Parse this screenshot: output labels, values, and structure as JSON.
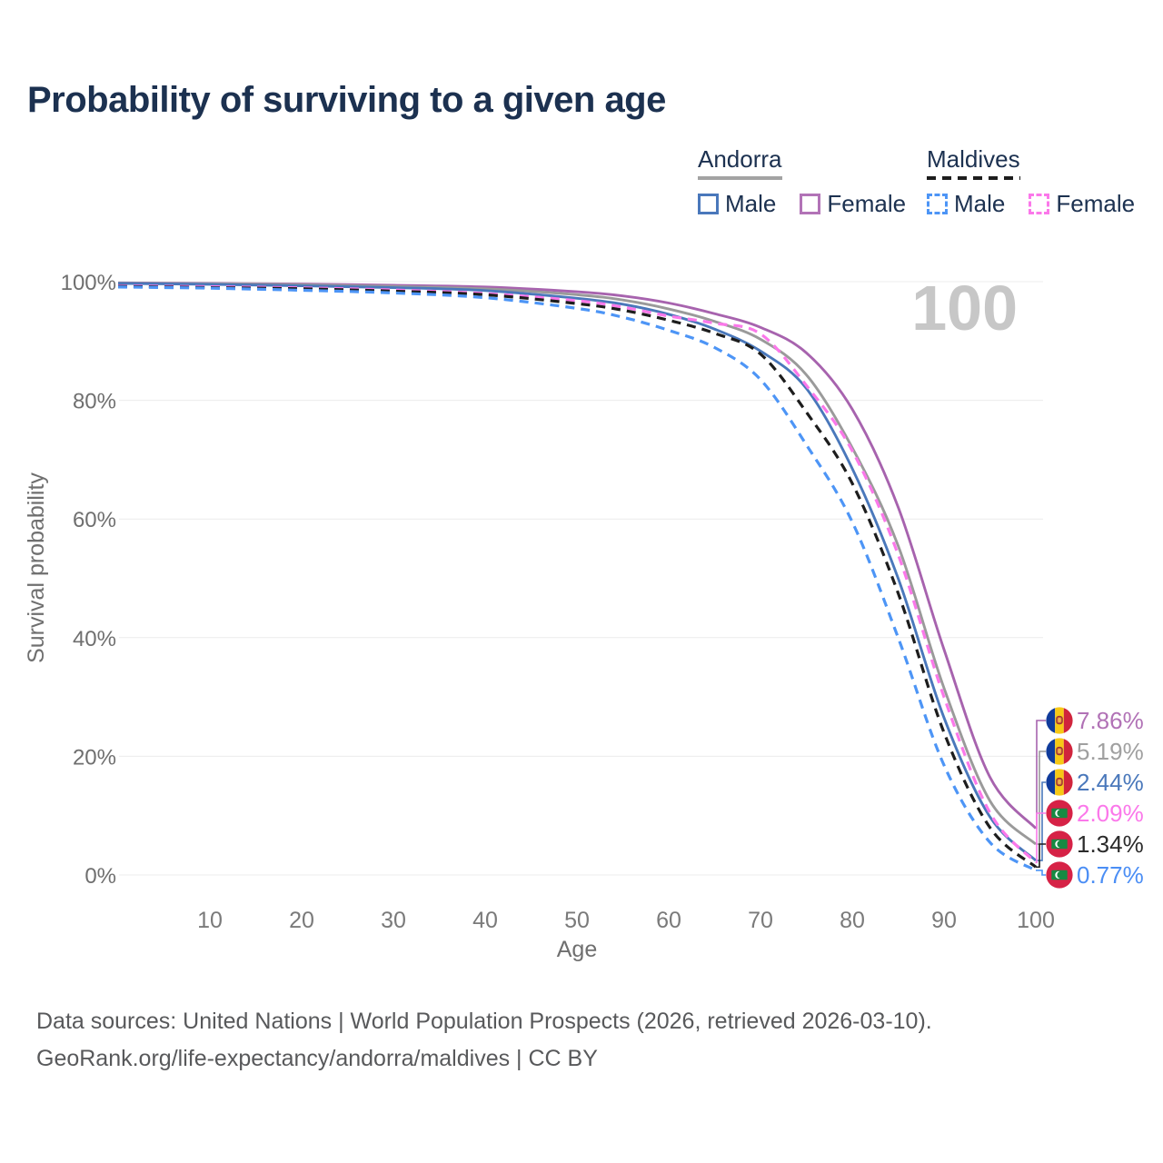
{
  "title": "Probability of surviving to a given age",
  "watermark_age": "100",
  "legend": {
    "groups": [
      {
        "label": "Andorra",
        "line_style": "solid",
        "line_color": "#a3a3a3",
        "items": [
          {
            "label": "Male",
            "color": "#4a78bb",
            "style": "solid"
          },
          {
            "label": "Female",
            "color": "#b273b7",
            "style": "solid"
          }
        ]
      },
      {
        "label": "Maldives",
        "line_style": "dashed",
        "line_color": "#1d1d1d",
        "items": [
          {
            "label": "Male",
            "color": "#4d95f6",
            "style": "dashed"
          },
          {
            "label": "Female",
            "color": "#fb78ea",
            "style": "dashed"
          }
        ]
      }
    ]
  },
  "chart_data": {
    "type": "line",
    "title": "Probability of surviving to a given age",
    "xlabel": "Age",
    "ylabel": "Survival probability",
    "xlim": [
      0,
      100
    ],
    "ylim": [
      0,
      100
    ],
    "x_ticks": [
      10,
      20,
      30,
      40,
      50,
      60,
      70,
      80,
      90,
      100
    ],
    "y_ticks": [
      0,
      20,
      40,
      60,
      80,
      100
    ],
    "y_tick_suffix": "%",
    "grid": "horizontal",
    "legend_position": "top-right",
    "x": [
      0,
      10,
      20,
      30,
      40,
      50,
      55,
      60,
      65,
      70,
      75,
      80,
      85,
      90,
      95,
      100
    ],
    "series": [
      {
        "name": "Andorra Female",
        "country": "Andorra",
        "sex": "Female",
        "color": "#a763ae",
        "label_color": "#b172b6",
        "dash": "solid",
        "flag": "andorra",
        "end_label": "7.86%",
        "values": [
          99.8,
          99.7,
          99.6,
          99.4,
          99.1,
          98.3,
          97.6,
          96.4,
          94.6,
          92.3,
          88.0,
          78.5,
          62.0,
          38.0,
          16.5,
          7.86
        ]
      },
      {
        "name": "Andorra",
        "country": "Andorra",
        "sex": "Both",
        "color": "#9a9a9a",
        "label_color": "#a0a0a0",
        "dash": "solid",
        "flag": "andorra",
        "end_label": "5.19%",
        "values": [
          99.75,
          99.65,
          99.5,
          99.2,
          98.8,
          97.8,
          96.9,
          95.4,
          93.3,
          90.3,
          84.3,
          72.0,
          55.5,
          31.5,
          12.5,
          5.19
        ]
      },
      {
        "name": "Andorra Male",
        "country": "Andorra",
        "sex": "Male",
        "color": "#4a78bb",
        "label_color": "#4a78bb",
        "dash": "solid",
        "flag": "andorra",
        "end_label": "2.44%",
        "values": [
          99.7,
          99.55,
          99.3,
          99.0,
          98.5,
          97.2,
          96.2,
          94.5,
          92.0,
          88.3,
          82.0,
          68.5,
          50.0,
          26.5,
          9.8,
          2.44
        ]
      },
      {
        "name": "Maldives Female",
        "country": "Maldives",
        "sex": "Female",
        "color": "#fb78ea",
        "label_color": "#fb78ea",
        "dash": "dashed",
        "flag": "maldives",
        "end_label": "2.09%",
        "values": [
          99.3,
          99.15,
          98.95,
          98.6,
          98.0,
          96.8,
          95.7,
          94.2,
          93.0,
          91.2,
          82.5,
          71.5,
          54.0,
          30.0,
          10.5,
          2.09
        ]
      },
      {
        "name": "Maldives",
        "country": "Maldives",
        "sex": "Both",
        "color": "#1d1d1d",
        "label_color": "#2b2b2b",
        "dash": "dashed",
        "flag": "maldives",
        "end_label": "1.34%",
        "values": [
          99.2,
          99.0,
          98.8,
          98.4,
          97.8,
          96.3,
          95.2,
          93.5,
          91.3,
          87.8,
          78.0,
          66.0,
          47.5,
          24.0,
          8.0,
          1.34
        ]
      },
      {
        "name": "Maldives Male",
        "country": "Maldives",
        "sex": "Male",
        "color": "#4d95f6",
        "label_color": "#4b8ef5",
        "dash": "dashed",
        "flag": "maldives",
        "end_label": "0.77%",
        "values": [
          99.1,
          98.9,
          98.55,
          98.1,
          97.3,
          95.5,
          94.0,
          91.8,
          88.9,
          83.5,
          72.5,
          59.5,
          40.0,
          18.5,
          5.5,
          0.77
        ]
      }
    ]
  },
  "footer": {
    "line1": "Data sources: United Nations | World Population Prospects (2026, retrieved 2026-03-10).",
    "line2": "GeoRank.org/life-expectancy/andorra/maldives | CC BY"
  }
}
